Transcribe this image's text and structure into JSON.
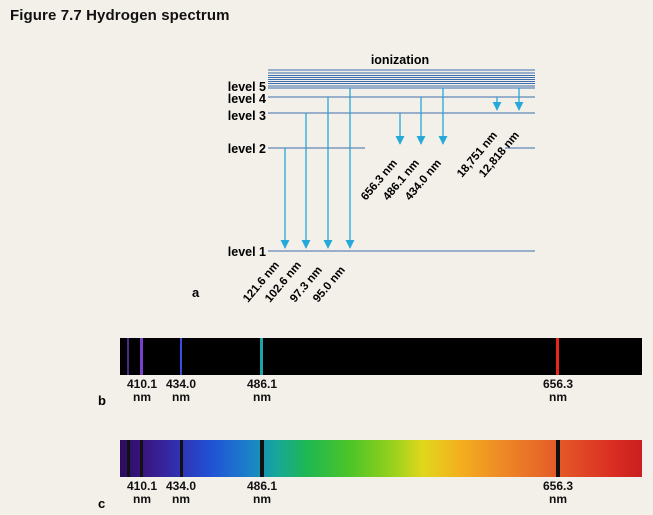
{
  "title": "Figure 7.7  Hydrogen spectrum",
  "ionization_label": "ionization",
  "levels": [
    "level 5",
    "level 4",
    "level 3",
    "level 2",
    "level 1"
  ],
  "lyman_lines": [
    "121.6 nm",
    "102.6 nm",
    "97.3 nm",
    "95.0 nm"
  ],
  "balmer_lines": [
    "656.3 nm",
    "486.1 nm",
    "434.0 nm"
  ],
  "ir_lines": [
    "18,751 nm",
    "12,818 nm"
  ],
  "panels": {
    "a": "a",
    "b": "b",
    "c": "c"
  },
  "visible_lines": [
    {
      "value": "410.1",
      "unit": "nm",
      "color": "#7b3fd0"
    },
    {
      "value": "434.0",
      "unit": "nm",
      "color": "#3a4de0"
    },
    {
      "value": "486.1",
      "unit": "nm",
      "color": "#1aa5a8"
    },
    {
      "value": "656.3",
      "unit": "nm",
      "color": "#e8261e"
    }
  ],
  "arrow_color": "#26a8d8",
  "line_color": "#3d6fb0"
}
